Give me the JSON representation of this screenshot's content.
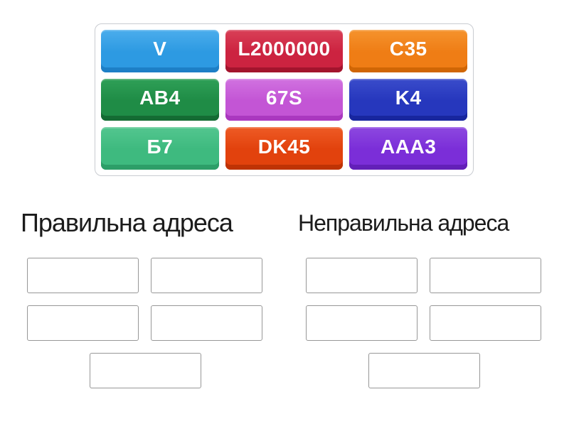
{
  "colors": {
    "page_bg": "#ffffff",
    "tray_border": "#c9ccd1",
    "slot_border": "#979797",
    "header_text": "#1b1b1b",
    "tile_text": "#ffffff"
  },
  "tray": {
    "tiles": [
      {
        "label": "V",
        "css": "--light:#4badec;--base:#2d9ae2;--dark:#1d7fc6"
      },
      {
        "label": "L2000000",
        "css": "--light:#d94057;--base:#cc2340;--dark:#a3142d"
      },
      {
        "label": "C35",
        "css": "--light:#f5932d;--base:#ef7d15;--dark:#d06605"
      },
      {
        "label": "AB4",
        "css": "--light:#2fa057;--base:#1f8c46;--dark:#146b33"
      },
      {
        "label": "67S",
        "css": "--light:#d172e0;--base:#c355d5;--dark:#aa38bf"
      },
      {
        "label": "K4",
        "css": "--light:#3a4ccb;--base:#2637bd;--dark:#18269e"
      },
      {
        "label": "Б7",
        "css": "--light:#53c68f;--base:#3eba7f;--dark:#2d9e68"
      },
      {
        "label": "DK45",
        "css": "--light:#ee5b25;--base:#e2420d;--dark:#bf3305"
      },
      {
        "label": "AAA3",
        "css": "--light:#8d48e0;--base:#7b2ed8;--dark:#6320b8"
      }
    ]
  },
  "groups": [
    {
      "title": "Правильна адреса",
      "slot_count": 5
    },
    {
      "title": "Неправильна адреса",
      "slot_count": 5
    }
  ]
}
